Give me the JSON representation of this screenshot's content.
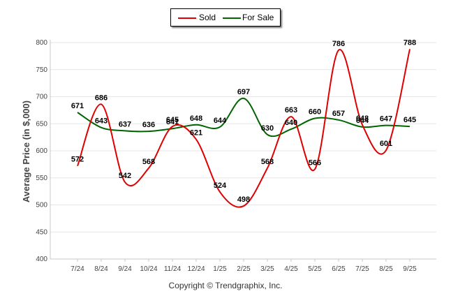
{
  "chart_data": {
    "type": "line",
    "categories": [
      "7/24",
      "8/24",
      "9/24",
      "10/24",
      "11/24",
      "12/24",
      "1/25",
      "2/25",
      "3/25",
      "4/25",
      "5/25",
      "6/25",
      "7/25",
      "8/25",
      "9/25"
    ],
    "series": [
      {
        "name": "Sold",
        "color": "#e00000",
        "values": [
          572,
          686,
          542,
          568,
          645,
          621,
          524,
          498,
          568,
          663,
          566,
          786,
          648,
          601,
          788
        ]
      },
      {
        "name": "For Sale",
        "color": "#006400",
        "values": [
          671,
          643,
          637,
          636,
          641,
          648,
          644,
          697,
          630,
          640,
          660,
          657,
          644,
          647,
          645
        ]
      }
    ],
    "title": "",
    "xlabel": "",
    "ylabel": "Average Price (in $,000)",
    "ylim": [
      400,
      800
    ],
    "yticks": [
      400,
      450,
      500,
      550,
      600,
      650,
      700,
      750,
      800
    ],
    "grid": true,
    "legend_position": "top-center"
  },
  "legend": {
    "sold_label": "Sold",
    "for_sale_label": "For Sale"
  },
  "footer": {
    "copyright": "Copyright © Trendgraphix, Inc."
  }
}
